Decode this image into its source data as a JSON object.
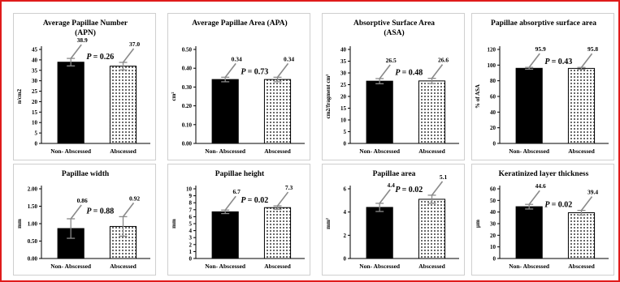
{
  "chart_data": [
    {
      "type": "bar",
      "title": "Average Papillae Number (APN)",
      "ylabel": "n/cm2",
      "categories": [
        "Non- Abscessed",
        "Abscessed"
      ],
      "values": [
        38.9,
        37.0
      ],
      "value_labels": [
        "38.9",
        "37.0"
      ],
      "errors": [
        1.8,
        1.8
      ],
      "ylim": [
        0,
        45
      ],
      "yticks": [
        0,
        5,
        10,
        15,
        20,
        25,
        30,
        35,
        40,
        45
      ],
      "ytick_labels": [
        "0",
        "5",
        "10",
        "15",
        "20",
        "25",
        "30",
        "35",
        "40",
        "45"
      ],
      "p_label": "P = 0.26",
      "fills": [
        "solid",
        "dotted"
      ]
    },
    {
      "type": "bar",
      "title": "Average Papillae Area (APA)",
      "ylabel": "cm²",
      "categories": [
        "Non- Abscessed",
        "Abscessed"
      ],
      "values": [
        0.34,
        0.34
      ],
      "value_labels": [
        "0.34",
        "0.34"
      ],
      "errors": [
        0.012,
        0.012
      ],
      "ylim": [
        0,
        0.5
      ],
      "yticks": [
        0,
        0.1,
        0.2,
        0.3,
        0.4,
        0.5
      ],
      "ytick_labels": [
        "0.00",
        "0.10",
        "0.20",
        "0.30",
        "0.40",
        "0.50"
      ],
      "p_label": "P = 0.73",
      "fills": [
        "solid",
        "dotted"
      ]
    },
    {
      "type": "bar",
      "title": "Absorptive Surface Area (ASA)",
      "ylabel": "cm2/fragment cm²",
      "categories": [
        "Non- Abscessed",
        "Abscessed"
      ],
      "values": [
        26.5,
        26.6
      ],
      "value_labels": [
        "26.5",
        "26.6"
      ],
      "errors": [
        1.1,
        1.1
      ],
      "ylim": [
        0,
        40
      ],
      "yticks": [
        0,
        5,
        10,
        15,
        20,
        25,
        30,
        35,
        40
      ],
      "ytick_labels": [
        "0",
        "5",
        "10",
        "15",
        "20",
        "25",
        "30",
        "35",
        "40"
      ],
      "p_label": "P = 0.48",
      "fills": [
        "solid",
        "dotted"
      ]
    },
    {
      "type": "bar",
      "title": "Papillae absorptive surface area",
      "ylabel": "% of ASA",
      "categories": [
        "Non- Abscessed",
        "Abscessed"
      ],
      "values": [
        95.9,
        95.8
      ],
      "value_labels": [
        "95.9",
        "95.8"
      ],
      "errors": [
        1.2,
        1.2
      ],
      "ylim": [
        0,
        120
      ],
      "yticks": [
        0,
        20,
        40,
        60,
        80,
        100,
        120
      ],
      "ytick_labels": [
        "0",
        "20",
        "40",
        "60",
        "80",
        "100",
        "120"
      ],
      "p_label": "P = 0.43",
      "fills": [
        "solid",
        "dotted"
      ]
    },
    {
      "type": "bar",
      "title": "Papillae width",
      "ylabel": "mm",
      "categories": [
        "Non- Abscessed",
        "Abscessed"
      ],
      "values": [
        0.86,
        0.92
      ],
      "value_labels": [
        "0.86",
        "0.92"
      ],
      "errors": [
        0.28,
        0.28
      ],
      "ylim": [
        0,
        2
      ],
      "yticks": [
        0,
        0.5,
        1.0,
        1.5,
        2.0
      ],
      "ytick_labels": [
        "0.00",
        "0.50",
        "1.00",
        "1.50",
        "2.00"
      ],
      "p_label": "P = 0.88",
      "fills": [
        "solid",
        "dotted"
      ]
    },
    {
      "type": "bar",
      "title": "Papillae height",
      "ylabel": "mm",
      "categories": [
        "Non- Abscessed",
        "Abscessed"
      ],
      "values": [
        6.7,
        7.3
      ],
      "value_labels": [
        "6.7",
        "7.3"
      ],
      "errors": [
        0.25,
        0.25
      ],
      "ylim": [
        0,
        10
      ],
      "yticks": [
        0,
        1,
        2,
        3,
        4,
        5,
        6,
        7,
        8,
        9,
        10
      ],
      "ytick_labels": [
        "0",
        "1",
        "2",
        "3",
        "4",
        "5",
        "6",
        "7",
        "8",
        "9",
        "10"
      ],
      "p_label": "P = 0.02",
      "fills": [
        "solid",
        "dotted"
      ]
    },
    {
      "type": "bar",
      "title": "Papillae area",
      "ylabel": "mm²",
      "categories": [
        "Non- Abscessed",
        "Abscessed"
      ],
      "values": [
        4.4,
        5.1
      ],
      "value_labels": [
        "4.4",
        "5.1"
      ],
      "errors": [
        0.35,
        0.35
      ],
      "ylim": [
        0,
        6
      ],
      "yticks": [
        0,
        2,
        4,
        6
      ],
      "ytick_labels": [
        "0",
        "2",
        "4",
        "6"
      ],
      "p_label": "P = 0.02",
      "fills": [
        "solid",
        "dotted"
      ]
    },
    {
      "type": "bar",
      "title": "Keratinized layer thickness",
      "ylabel": "µm",
      "categories": [
        "Non- Abscessed",
        "Abscessed"
      ],
      "values": [
        44.6,
        39.4
      ],
      "value_labels": [
        "44.6",
        "39.4"
      ],
      "errors": [
        2.0,
        2.0
      ],
      "ylim": [
        0,
        60
      ],
      "yticks": [
        0,
        10,
        20,
        30,
        40,
        50,
        60
      ],
      "ytick_labels": [
        "0",
        "10",
        "20",
        "30",
        "40",
        "50",
        "60"
      ],
      "p_label": "P = 0.02",
      "fills": [
        "solid",
        "dotted"
      ]
    }
  ]
}
